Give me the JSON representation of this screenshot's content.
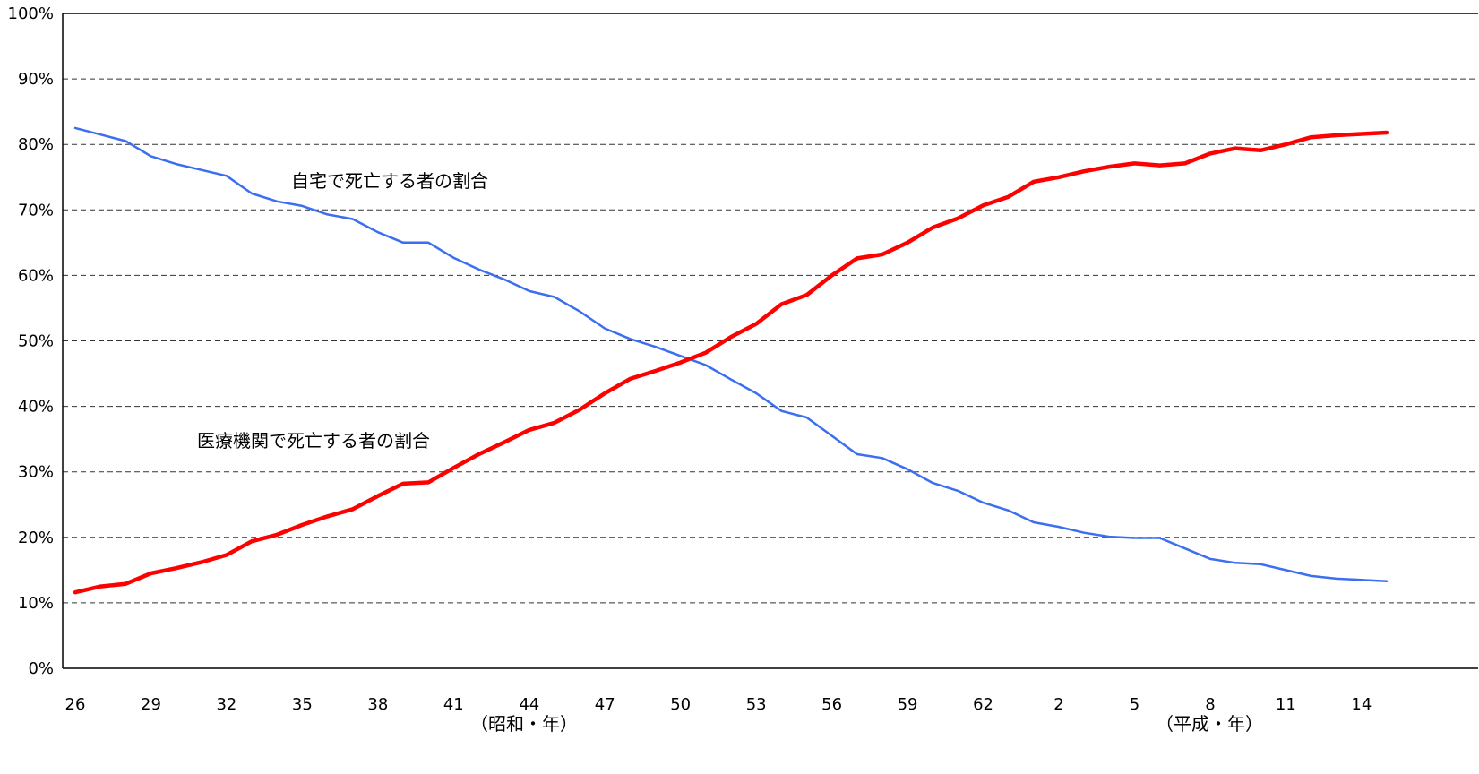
{
  "chart_data": {
    "type": "line",
    "title": "",
    "xlabel": "",
    "ylabel": "",
    "ylim": [
      0,
      100
    ],
    "y_ticks": [
      "0%",
      "10%",
      "20%",
      "30%",
      "40%",
      "50%",
      "60%",
      "70%",
      "80%",
      "90%",
      "100%"
    ],
    "grid": "horizontal dashed",
    "x": [
      26,
      27,
      28,
      29,
      30,
      31,
      32,
      33,
      34,
      35,
      36,
      37,
      38,
      39,
      40,
      41,
      42,
      43,
      44,
      45,
      46,
      47,
      48,
      49,
      50,
      51,
      52,
      53,
      54,
      55,
      56,
      57,
      58,
      59,
      60,
      61,
      62,
      63,
      1,
      2,
      3,
      4,
      5,
      6,
      7,
      8,
      9,
      10,
      11,
      12,
      13,
      14,
      15
    ],
    "x_tick_labels": [
      "26",
      "29",
      "32",
      "35",
      "38",
      "41",
      "44",
      "47",
      "50",
      "53",
      "56",
      "59",
      "62",
      "2",
      "5",
      "8",
      "11",
      "14"
    ],
    "era_labels": [
      "（昭和・年）",
      "（平成・年）"
    ],
    "series": [
      {
        "name": "自宅で死亡する者の割合",
        "color": "#3b6ef0",
        "values": [
          82.5,
          81.5,
          80.5,
          78.2,
          77.0,
          76.1,
          75.2,
          72.5,
          71.3,
          70.6,
          69.3,
          68.6,
          66.6,
          65.0,
          65.0,
          62.7,
          60.9,
          59.4,
          57.6,
          56.7,
          54.5,
          51.9,
          50.3,
          49.1,
          47.7,
          46.3,
          44.1,
          42.0,
          39.3,
          38.3,
          35.5,
          32.7,
          32.1,
          30.4,
          28.3,
          27.1,
          25.3,
          24.1,
          22.3,
          21.6,
          20.7,
          20.1,
          19.9,
          19.9,
          18.3,
          16.7,
          16.1,
          15.9,
          15.0,
          14.1,
          13.7,
          13.5,
          13.3
        ]
      },
      {
        "name": "医療機関で死亡する者の割合",
        "color": "#ff0000",
        "values": [
          11.6,
          12.5,
          12.9,
          14.5,
          15.3,
          16.2,
          17.3,
          19.4,
          20.4,
          21.9,
          23.2,
          24.3,
          26.3,
          28.2,
          28.4,
          30.6,
          32.7,
          34.5,
          36.4,
          37.5,
          39.5,
          42.0,
          44.2,
          45.4,
          46.7,
          48.2,
          50.6,
          52.6,
          55.6,
          57.0,
          60.0,
          62.6,
          63.2,
          65.0,
          67.3,
          68.7,
          70.7,
          72.0,
          74.3,
          75.0,
          75.9,
          76.6,
          77.1,
          76.8,
          77.1,
          78.6,
          79.4,
          79.1,
          80.0,
          81.1,
          81.4,
          81.6,
          81.8
        ]
      }
    ],
    "annotations": [
      "自宅で死亡する者の割合",
      "医療機関で死亡する者の割合"
    ]
  }
}
